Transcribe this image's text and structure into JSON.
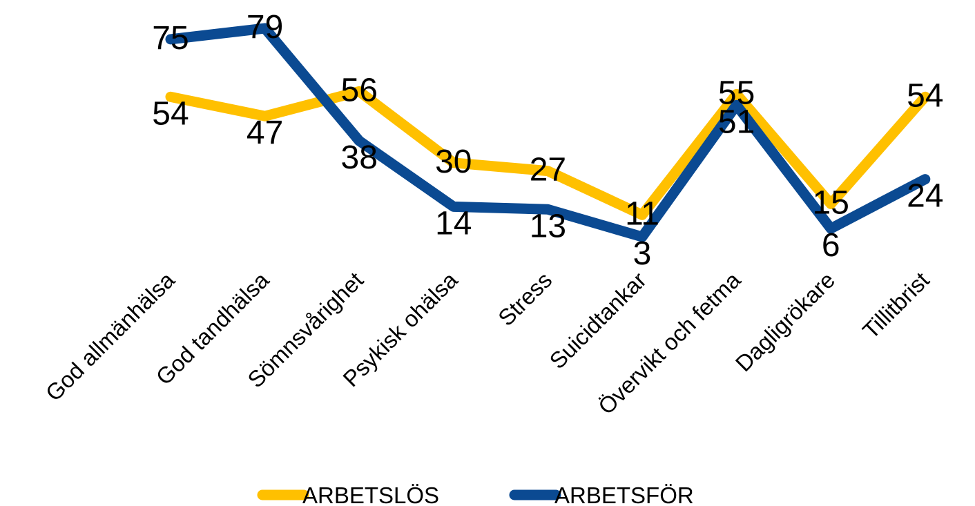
{
  "chart_data": {
    "type": "line",
    "title": "",
    "xlabel": "",
    "ylabel": "",
    "ylim": [
      0,
      80
    ],
    "grid": false,
    "legend_position": "bottom",
    "categories": [
      "God allmänhälsa",
      "God tandhälsa",
      "Sömnsvårighet",
      "Psykisk ohälsa",
      "Stress",
      "Suicidtankar",
      "Övervikt och fetma",
      "Dagligrökare",
      "Tillitbrist"
    ],
    "series": [
      {
        "name": "ARBETSLÖS",
        "color": "#FFC000",
        "values": [
          54,
          47,
          56,
          30,
          27,
          11,
          55,
          15,
          54
        ]
      },
      {
        "name": "ARBETSFÖR",
        "color": "#0B4A92",
        "values": [
          75,
          79,
          38,
          14,
          13,
          3,
          51,
          6,
          24
        ]
      }
    ]
  }
}
